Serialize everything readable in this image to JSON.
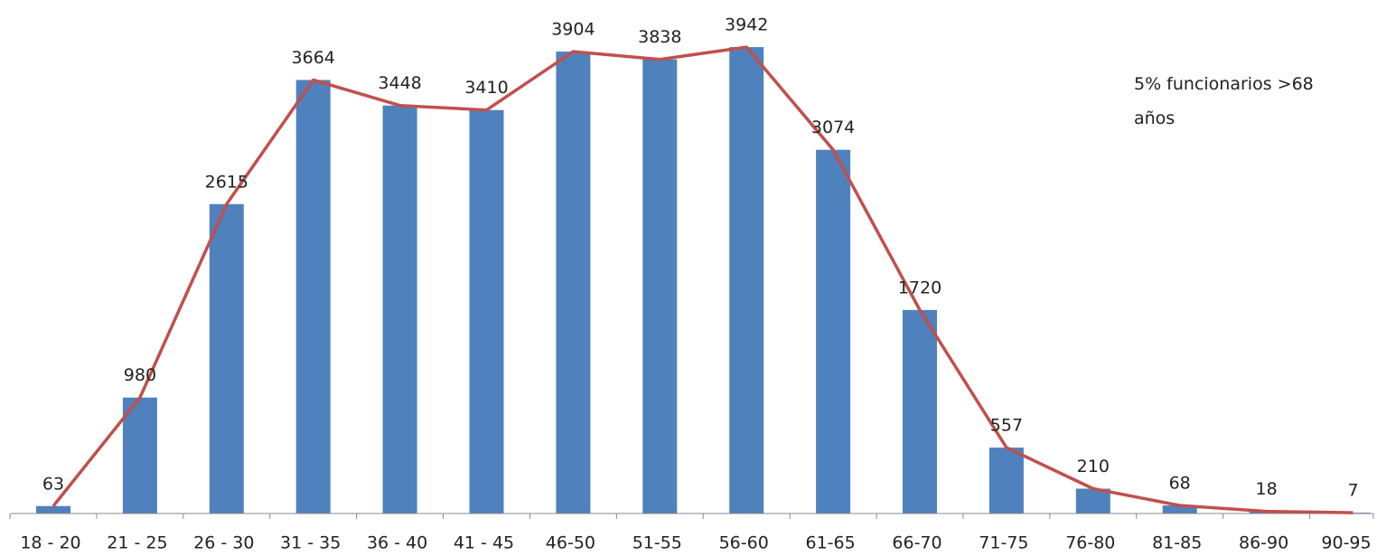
{
  "chart_data": {
    "type": "bar",
    "categories": [
      "18 - 20",
      "21 - 25",
      "26  - 30",
      "31 - 35",
      "36 - 40",
      "41 - 45",
      "46-50",
      "51-55",
      "56-60",
      "61-65",
      "66-70",
      "71-75",
      "76-80",
      "81-85",
      "86-90",
      "90-95"
    ],
    "values": [
      63,
      980,
      2615,
      3664,
      3448,
      3410,
      3904,
      3838,
      3942,
      3074,
      1720,
      557,
      210,
      68,
      18,
      7
    ],
    "color": "#4f81bd",
    "line_color": "#c0504d",
    "line_overlay": true,
    "ylim": [
      0,
      4340
    ],
    "annotation": "5% funcionarios  >68 años"
  }
}
